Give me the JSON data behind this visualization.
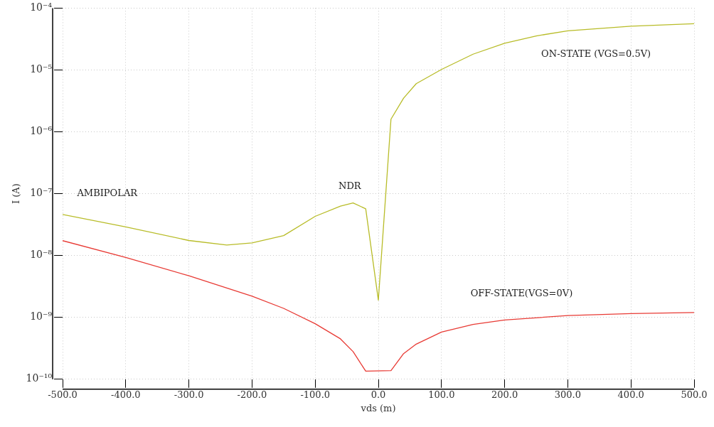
{
  "chart_data": {
    "type": "line",
    "xlabel": "vds (m)",
    "ylabel": "I (A)",
    "log": "y",
    "grid": true,
    "legend": false,
    "marker": "none",
    "line_style": "solid",
    "xlim": [
      -500,
      500
    ],
    "ylim": [
      1e-10,
      0.0001
    ],
    "xticks": [
      {
        "value": -500,
        "label": "-500.0"
      },
      {
        "value": -400,
        "label": "-400.0"
      },
      {
        "value": -300,
        "label": "-300.0"
      },
      {
        "value": -200,
        "label": "-200.0"
      },
      {
        "value": -100,
        "label": "-100.0"
      },
      {
        "value": 0,
        "label": "0.0"
      },
      {
        "value": 100,
        "label": "100.0"
      },
      {
        "value": 200,
        "label": "200.0"
      },
      {
        "value": 300,
        "label": "300.0"
      },
      {
        "value": 400,
        "label": "400.0"
      },
      {
        "value": 500,
        "label": "500.0"
      }
    ],
    "yticks": [
      {
        "value": 1e-10,
        "label": "10⁻¹⁰"
      },
      {
        "value": 1e-09,
        "label": "10⁻⁹"
      },
      {
        "value": 1e-08,
        "label": "10⁻⁸"
      },
      {
        "value": 1e-07,
        "label": "10⁻⁷"
      },
      {
        "value": 1e-06,
        "label": "10⁻⁶"
      },
      {
        "value": 1e-05,
        "label": "10⁻⁵"
      },
      {
        "value": 0.0001,
        "label": "10⁻⁴"
      }
    ],
    "series": [
      {
        "color": "#b8bc28",
        "x": [
          -500,
          -400,
          -300,
          -240,
          -200,
          -150,
          -100,
          -60,
          -40,
          -20,
          0,
          20,
          40,
          60,
          100,
          150,
          200,
          250,
          300,
          400,
          500
        ],
        "values": [
          4.6e-08,
          2.9e-08,
          1.75e-08,
          1.48e-08,
          1.6e-08,
          2.1e-08,
          4.3e-08,
          6.3e-08,
          7.1e-08,
          5.7e-08,
          1.9e-09,
          1.6e-06,
          3.5e-06,
          6e-06,
          1.02e-05,
          1.8e-05,
          2.7e-05,
          3.55e-05,
          4.3e-05,
          5.1e-05,
          5.6e-05
        ]
      },
      {
        "color": "#e83a34",
        "x": [
          -500,
          -400,
          -300,
          -200,
          -150,
          -100,
          -60,
          -40,
          -20,
          20,
          40,
          60,
          100,
          150,
          200,
          300,
          400,
          500
        ],
        "values": [
          1.74e-08,
          9.3e-09,
          4.7e-09,
          2.2e-09,
          1.4e-09,
          7.9e-10,
          4.5e-10,
          2.8e-10,
          1.35e-10,
          1.38e-10,
          2.6e-10,
          3.7e-10,
          5.8e-10,
          7.7e-10,
          9.1e-10,
          1.07e-09,
          1.15e-09,
          1.2e-09
        ]
      }
    ],
    "annotations": [
      "AMBIPOLAR",
      "NDR",
      "ON-STATE (VGS=0.5V)",
      "OFF-STATE(VGS=0V)"
    ]
  }
}
